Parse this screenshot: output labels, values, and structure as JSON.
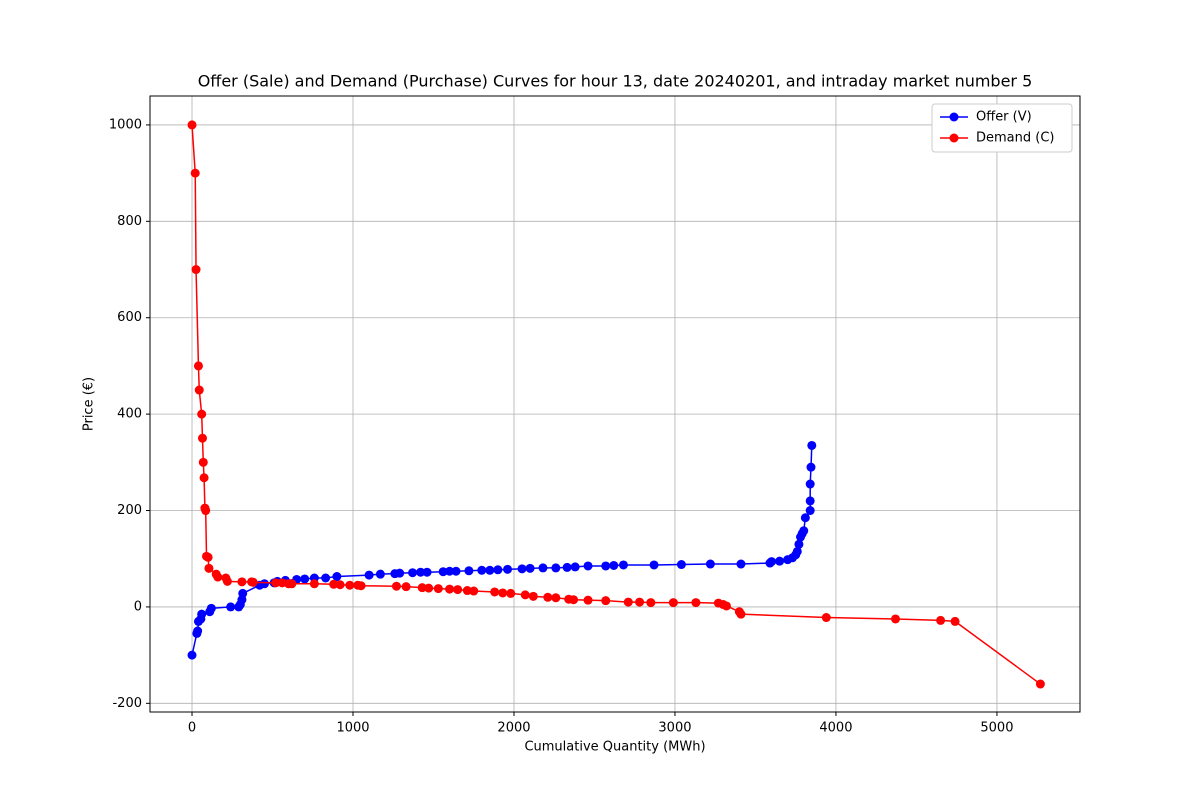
{
  "chart_data": {
    "type": "line",
    "title": "Offer (Sale) and Demand (Purchase) Curves for hour 13, date 20240201, and intraday market number 5",
    "x_label": "Cumulative Quantity (MWh)",
    "y_label": "Price (€)",
    "xlim": [
      -261,
      5516
    ],
    "ylim": [
      -218,
      1060
    ],
    "xticks": [
      0,
      1000,
      2000,
      3000,
      4000,
      5000
    ],
    "yticks": [
      -200,
      0,
      200,
      400,
      600,
      800,
      1000
    ],
    "grid": true,
    "legend": "upper right",
    "series": [
      {
        "name": "Offer (V)",
        "color": "#0000ff",
        "x": [
          0,
          30,
          35,
          40,
          55,
          60,
          110,
          120,
          240,
          290,
          300,
          310,
          315,
          420,
          450,
          510,
          530,
          580,
          650,
          700,
          760,
          830,
          900,
          1100,
          1170,
          1260,
          1290,
          1370,
          1420,
          1460,
          1560,
          1600,
          1640,
          1720,
          1800,
          1850,
          1900,
          1960,
          2050,
          2100,
          2180,
          2260,
          2330,
          2380,
          2460,
          2570,
          2620,
          2680,
          2870,
          3040,
          3220,
          3410,
          3590,
          3600,
          3650,
          3700,
          3730,
          3750,
          3760,
          3770,
          3780,
          3790,
          3800,
          3810,
          3840,
          3840,
          3840,
          3845,
          3850
        ],
        "values": [
          -100,
          -55,
          -50,
          -30,
          -25,
          -15,
          -10,
          -3,
          0,
          0,
          5,
          15,
          28,
          45,
          48,
          50,
          53,
          55,
          57,
          58,
          60,
          60,
          63,
          66,
          68,
          69,
          70,
          71,
          72,
          72,
          73,
          74,
          74,
          75,
          76,
          76,
          77,
          78,
          79,
          80,
          81,
          81,
          82,
          83,
          85,
          85,
          86,
          87,
          87,
          88,
          89,
          89,
          91,
          94,
          95,
          98,
          102,
          108,
          115,
          130,
          145,
          152,
          158,
          185,
          200,
          220,
          255,
          290,
          335
        ]
      },
      {
        "name": "Demand (C)",
        "color": "#ff0000",
        "x": [
          0,
          20,
          25,
          40,
          45,
          60,
          65,
          70,
          75,
          80,
          85,
          90,
          100,
          105,
          150,
          160,
          210,
          220,
          310,
          370,
          380,
          520,
          560,
          600,
          620,
          760,
          880,
          920,
          980,
          1030,
          1050,
          1270,
          1330,
          1430,
          1470,
          1530,
          1600,
          1650,
          1710,
          1750,
          1880,
          1930,
          1980,
          2070,
          2120,
          2210,
          2260,
          2340,
          2370,
          2460,
          2570,
          2710,
          2780,
          2850,
          2990,
          3130,
          3270,
          3300,
          3320,
          3400,
          3410,
          3940,
          4370,
          4650,
          4740,
          5270
        ],
        "values": [
          1000,
          900,
          700,
          500,
          450,
          400,
          350,
          300,
          268,
          205,
          200,
          105,
          103,
          80,
          68,
          62,
          60,
          53,
          52,
          52,
          51,
          50,
          50,
          48,
          48,
          48,
          47,
          46,
          45,
          45,
          44,
          43,
          42,
          40,
          39,
          38,
          37,
          36,
          34,
          33,
          31,
          29,
          28,
          25,
          22,
          20,
          19,
          16,
          15,
          14,
          13,
          10,
          10,
          9,
          9,
          9,
          8,
          5,
          2,
          -10,
          -15,
          -22,
          -25,
          -28,
          -30,
          -160
        ]
      }
    ]
  }
}
